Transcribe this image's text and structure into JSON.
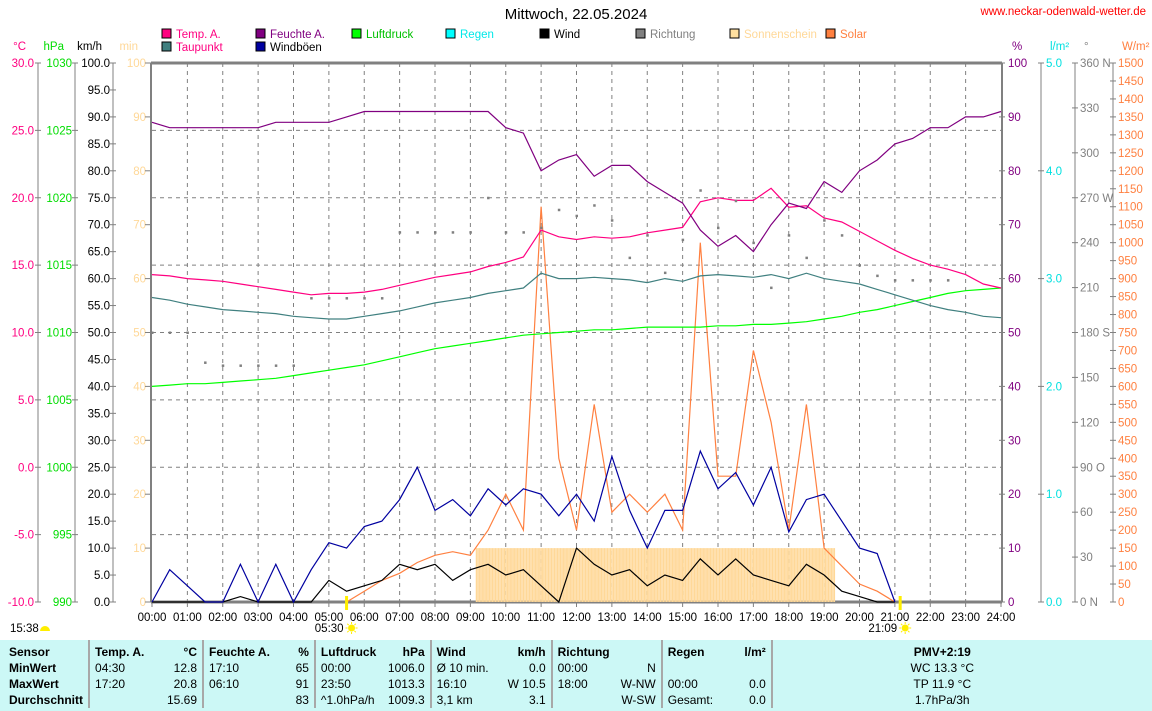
{
  "header": {
    "title": "Mittwoch, 22.05.2024",
    "site": "www.neckar-odenwald-wetter.de"
  },
  "colors": {
    "temp": "#ff0080",
    "dew": "#408080",
    "hum": "#800080",
    "gust": "#0000a0",
    "press": "#00ff00",
    "rain": "#00ffff",
    "wind": "#000000",
    "dir": "#808080",
    "sun": "#ffd898",
    "solar": "#ff8040"
  },
  "legend": [
    {
      "label": "Temp. A.",
      "color": "#ff0080",
      "text_color": "#ff0080"
    },
    {
      "label": "Taupunkt",
      "color": "#408080",
      "text_color": "#ff0080"
    },
    {
      "label": "Feuchte A.",
      "color": "#800080",
      "text_color": "#800080"
    },
    {
      "label": "Windböen",
      "color": "#0000a0",
      "text_color": "#000000"
    },
    {
      "label": "Luftdruck",
      "color": "#00ff00",
      "text_color": "#00c000"
    },
    {
      "label": "Regen",
      "color": "#00ffff",
      "text_color": "#00e8e8"
    },
    {
      "label": "Wind",
      "color": "#000000",
      "text_color": "#000000"
    },
    {
      "label": "Richtung",
      "color": "#808080",
      "text_color": "#808080"
    },
    {
      "label": "Sonnenschein",
      "color": "#ffe0a0",
      "text_color": "#ffd898"
    },
    {
      "label": "Solar",
      "color": "#ff8040",
      "text_color": "#ff8040"
    }
  ],
  "axes": {
    "left": [
      {
        "unit": "°C",
        "color": "#ff0080",
        "ticks": [
          "30.0",
          "25.0",
          "20.0",
          "15.0",
          "10.0",
          "5.0",
          "0.0",
          "-5.0",
          "-10.0"
        ]
      },
      {
        "unit": "hPa",
        "color": "#00dd00",
        "ticks": [
          "1030",
          "1025",
          "1020",
          "1015",
          "1010",
          "1005",
          "1000",
          "995",
          "990"
        ]
      },
      {
        "unit": "km/h",
        "color": "#000000",
        "ticks": [
          "100.0",
          "95.0",
          "90.0",
          "85.0",
          "80.0",
          "75.0",
          "70.0",
          "65.0",
          "60.0",
          "55.0",
          "50.0",
          "45.0",
          "40.0",
          "35.0",
          "30.0",
          "25.0",
          "20.0",
          "15.0",
          "10.0",
          "5.0",
          "0.0"
        ]
      },
      {
        "unit": "min",
        "color": "#ffd898",
        "ticks": [
          "100",
          "90",
          "80",
          "70",
          "60",
          "50",
          "40",
          "30",
          "20",
          "10",
          "0"
        ]
      }
    ],
    "right": [
      {
        "unit": "%",
        "color": "#800080",
        "ticks": [
          "100",
          "90",
          "80",
          "70",
          "60",
          "50",
          "40",
          "30",
          "20",
          "10",
          "0"
        ]
      },
      {
        "unit": "l/m²",
        "color": "#00e0e0",
        "ticks": [
          "5.0",
          "4.0",
          "3.0",
          "2.0",
          "1.0",
          "0.0"
        ]
      },
      {
        "unit": "°",
        "color": "#808080",
        "ticks": [
          "360 N",
          "330",
          "300",
          "270 W",
          "240",
          "210",
          "180 S",
          "150",
          "120",
          "90 O",
          "60",
          "30",
          "0 N"
        ]
      },
      {
        "unit": "W/m²",
        "color": "#ff8040",
        "ticks": [
          "1500",
          "1450",
          "1400",
          "1350",
          "1300",
          "1250",
          "1200",
          "1150",
          "1100",
          "1050",
          "1000",
          "950",
          "900",
          "850",
          "800",
          "750",
          "700",
          "650",
          "600",
          "550",
          "500",
          "450",
          "400",
          "350",
          "300",
          "250",
          "200",
          "150",
          "100",
          "50",
          "0"
        ]
      }
    ],
    "x_ticks": [
      "00:00",
      "01:00",
      "02:00",
      "03:00",
      "04:00",
      "05:00",
      "06:00",
      "07:00",
      "08:00",
      "09:00",
      "10:00",
      "11:00",
      "12:00",
      "13:00",
      "14:00",
      "15:00",
      "16:00",
      "17:00",
      "18:00",
      "19:00",
      "20:00",
      "21:00",
      "22:00",
      "23:00",
      "24:00"
    ]
  },
  "sun": {
    "sunrise": "05:30",
    "sunset": "21:09",
    "daylength": "15:38"
  },
  "chart_data": {
    "type": "line",
    "title": "Mittwoch, 22.05.2024",
    "x_start_hour": 0,
    "x_step_hour": 0.5,
    "xlim": [
      0,
      24
    ],
    "grid": true,
    "legend_position": "top",
    "series": [
      {
        "key": "temp",
        "name": "Temp. A.",
        "unit": "°C",
        "range": [
          -10,
          30
        ],
        "values": [
          14.3,
          14.2,
          14.0,
          13.9,
          13.8,
          13.6,
          13.4,
          13.2,
          13.0,
          12.8,
          12.9,
          12.9,
          13.0,
          13.2,
          13.5,
          13.8,
          14.1,
          14.3,
          14.5,
          14.9,
          15.2,
          15.6,
          17.6,
          17.1,
          16.9,
          17.1,
          17.0,
          17.1,
          17.4,
          17.6,
          17.8,
          19.7,
          20.0,
          19.8,
          19.8,
          20.7,
          19.3,
          19.4,
          18.5,
          18.2,
          17.5,
          16.8,
          16.1,
          15.5,
          15.0,
          14.7,
          14.3,
          13.6,
          13.3
        ]
      },
      {
        "key": "dew",
        "name": "Taupunkt",
        "unit": "°C",
        "range": [
          -10,
          30
        ],
        "values": [
          12.6,
          12.4,
          12.1,
          11.9,
          11.7,
          11.6,
          11.5,
          11.4,
          11.2,
          11.1,
          11.0,
          11.0,
          11.2,
          11.4,
          11.6,
          11.9,
          12.2,
          12.4,
          12.6,
          12.9,
          13.1,
          13.3,
          14.4,
          14.0,
          14.0,
          14.1,
          14.0,
          13.9,
          13.7,
          14.0,
          13.8,
          14.2,
          14.3,
          14.2,
          14.1,
          14.3,
          14.0,
          14.4,
          14.0,
          13.8,
          13.6,
          13.2,
          12.8,
          12.4,
          12.0,
          11.7,
          11.5,
          11.2,
          11.1
        ]
      },
      {
        "key": "hum",
        "name": "Feuchte A.",
        "unit": "%",
        "range": [
          0,
          100
        ],
        "values": [
          89,
          88,
          88,
          88,
          88,
          88,
          88,
          89,
          89,
          89,
          89,
          90,
          91,
          91,
          91,
          91,
          91,
          91,
          91,
          91,
          88,
          87,
          80,
          82,
          83,
          79,
          81,
          81,
          78,
          76,
          74,
          69,
          66,
          68,
          65,
          70,
          74,
          73,
          78,
          76,
          80,
          82,
          85,
          86,
          88,
          88,
          90,
          90,
          91
        ]
      },
      {
        "key": "press",
        "name": "Luftdruck",
        "unit": "hPa",
        "range": [
          990,
          1030
        ],
        "values": [
          1006.0,
          1006.1,
          1006.2,
          1006.2,
          1006.3,
          1006.4,
          1006.5,
          1006.6,
          1006.8,
          1007.0,
          1007.2,
          1007.4,
          1007.6,
          1007.9,
          1008.2,
          1008.5,
          1008.8,
          1009.0,
          1009.2,
          1009.4,
          1009.6,
          1009.8,
          1009.9,
          1010.0,
          1010.1,
          1010.2,
          1010.2,
          1010.3,
          1010.4,
          1010.4,
          1010.4,
          1010.4,
          1010.5,
          1010.5,
          1010.6,
          1010.6,
          1010.7,
          1010.8,
          1011.0,
          1011.2,
          1011.5,
          1011.7,
          1012.0,
          1012.3,
          1012.6,
          1012.9,
          1013.1,
          1013.2,
          1013.3
        ]
      },
      {
        "key": "rain",
        "name": "Regen",
        "unit": "l/m²",
        "range": [
          0,
          5
        ],
        "values": [
          0,
          0,
          0,
          0,
          0,
          0,
          0,
          0,
          0,
          0,
          0,
          0,
          0,
          0,
          0,
          0,
          0,
          0,
          0,
          0,
          0,
          0,
          0,
          0,
          0,
          0,
          0,
          0,
          0,
          0,
          0,
          0,
          0,
          0,
          0,
          0,
          0,
          0,
          0,
          0,
          0,
          0,
          0,
          0,
          0,
          0,
          0,
          0,
          0
        ]
      },
      {
        "key": "gust",
        "name": "Windböen",
        "unit": "km/h",
        "range": [
          0,
          100
        ],
        "values": [
          0,
          6,
          3,
          0,
          0,
          7,
          0,
          7,
          0,
          6,
          11,
          10,
          14,
          15,
          19,
          25,
          17,
          19,
          16,
          21,
          18,
          21,
          20,
          16,
          20,
          15,
          27,
          17,
          10,
          17,
          17,
          28,
          21,
          24,
          18,
          25,
          13,
          19,
          20,
          15,
          10,
          9,
          0,
          null,
          null,
          null,
          null,
          null,
          null
        ]
      },
      {
        "key": "wind",
        "name": "Wind",
        "unit": "km/h",
        "range": [
          0,
          100
        ],
        "values": [
          0,
          0,
          0,
          0,
          0,
          1,
          0,
          0,
          0,
          0,
          4,
          2,
          3,
          4,
          7,
          6,
          7,
          4,
          6,
          7,
          5,
          6,
          3,
          0,
          10,
          7,
          5,
          6,
          3,
          5,
          4,
          8,
          5,
          8,
          5,
          4,
          3,
          7,
          5,
          2,
          1,
          0,
          0,
          null,
          null,
          null,
          null,
          null,
          null
        ]
      },
      {
        "key": "solar",
        "name": "Solar",
        "unit": "W/m²",
        "range": [
          0,
          1500
        ],
        "values": [
          null,
          null,
          null,
          null,
          null,
          null,
          null,
          null,
          null,
          null,
          null,
          0,
          30,
          60,
          80,
          110,
          130,
          140,
          130,
          200,
          300,
          200,
          1100,
          400,
          200,
          550,
          250,
          300,
          250,
          300,
          200,
          1000,
          350,
          350,
          700,
          500,
          200,
          550,
          150,
          100,
          50,
          30,
          0,
          null,
          null,
          null,
          null,
          null,
          null
        ]
      },
      {
        "key": "dir",
        "name": "Richtung",
        "unit": "°",
        "range": [
          0,
          360
        ],
        "style": "dots",
        "values": [
          180,
          180,
          180,
          160,
          158,
          158,
          158,
          158,
          158,
          203,
          203,
          203,
          203,
          203,
          247,
          247,
          247,
          247,
          247,
          270,
          247,
          247,
          250,
          262,
          258,
          265,
          255,
          230,
          245,
          220,
          242,
          275,
          250,
          268,
          240,
          210,
          245,
          230,
          255,
          245,
          225,
          218,
          215,
          215,
          215,
          215,
          null,
          null,
          null
        ]
      },
      {
        "key": "sun",
        "name": "Sonnenschein",
        "unit": "min",
        "range": [
          0,
          100
        ],
        "style": "bars",
        "start_hour": 9.17,
        "end_hour": 19.33,
        "interval_hour": 0.0833,
        "value": 10
      }
    ]
  },
  "stats": {
    "rows": [
      [
        "Sensor",
        "Temp. A.",
        "°C",
        "Feuchte A.",
        "%",
        "Luftdruck",
        "hPa",
        "Wind",
        "km/h",
        "Richtung",
        "",
        "Regen",
        "l/m²",
        "PMV+2:19"
      ],
      [
        "MinWert",
        "04:30",
        "12.8",
        "17:10",
        "65",
        "00:00",
        "1006.0",
        "Ø 10 min.",
        "0.0",
        "00:00",
        "N",
        "",
        "",
        "WC 13.3 °C"
      ],
      [
        "MaxWert",
        "17:20",
        "20.8",
        "06:10",
        "91",
        "23:50",
        "1013.3",
        "16:10",
        "W 10.5",
        "18:00",
        "W-NW",
        "00:00",
        "0.0",
        "TP 11.9 °C"
      ],
      [
        "Durchschnitt",
        "",
        "15.69",
        "",
        "83",
        "^1.0hPa/h",
        "1009.3",
        "3,1 km",
        "3.1",
        "",
        "W-SW",
        "Gesamt:",
        "0.0",
        "1.7hPa/3h"
      ]
    ]
  }
}
